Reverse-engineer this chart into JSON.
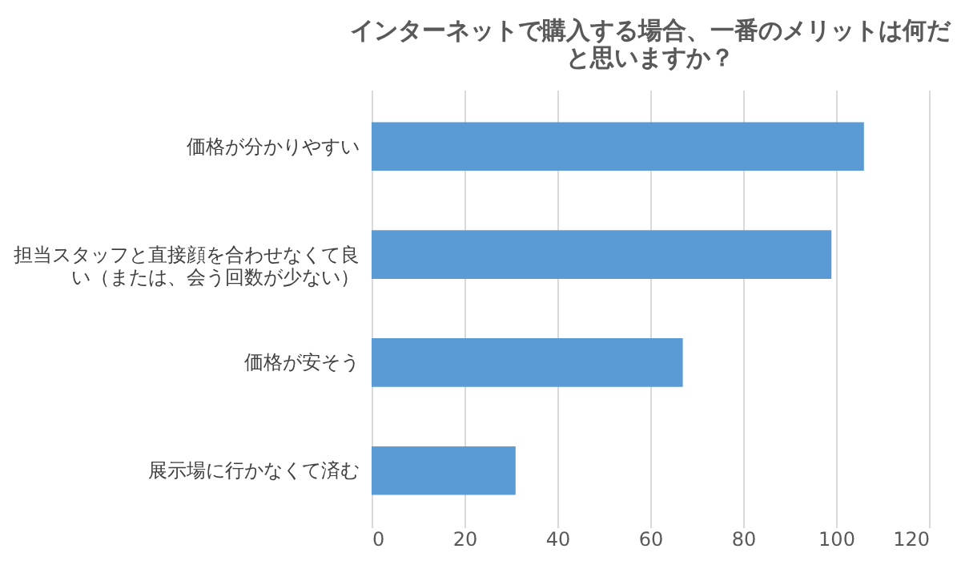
{
  "chart_data": {
    "type": "bar",
    "orientation": "horizontal",
    "title": "インターネットで購入する場合、一番のメリットは何だと思いますか？",
    "categories": [
      "価格が分かりやすい",
      "担当スタッフと直接顔を合わせなくて良い（または、会う回数が少ない）",
      "価格が安そう",
      "展示場に行かなくて済む"
    ],
    "values": [
      106,
      99,
      67,
      31
    ],
    "color": "#5b9bd5",
    "xlim": [
      0,
      120
    ],
    "xticks": [
      0,
      20,
      40,
      60,
      80,
      100,
      120
    ],
    "grid": "x"
  }
}
